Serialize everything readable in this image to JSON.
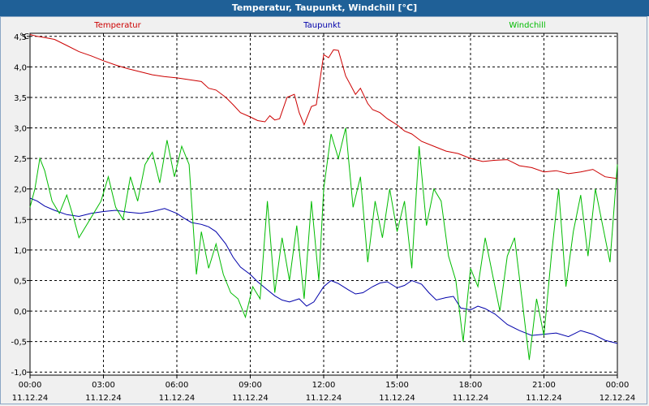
{
  "window": {
    "title": "Temperatur, Taupunkt, Windchill [°C]"
  },
  "chart_data": {
    "type": "line",
    "title": "Temperatur, Taupunkt, Windchill [°C]",
    "ylabel": "°C",
    "xlabel": "",
    "ylim": [
      -1.05,
      4.55
    ],
    "xlim": [
      0,
      24
    ],
    "grid": true,
    "legend_position": "top",
    "y_ticks": [
      4.5,
      4.0,
      3.5,
      3.0,
      2.5,
      2.0,
      1.5,
      1.0,
      0.5,
      0.0,
      -0.5,
      -1.0
    ],
    "y_tick_labels": [
      "4,5",
      "4,0",
      "3,5",
      "3,0",
      "2,5",
      "2,0",
      "1,5",
      "1,0",
      "0,5",
      "0,0",
      "-0,5",
      "-1,0"
    ],
    "x_ticks": [
      0,
      3,
      6,
      9,
      12,
      15,
      18,
      21,
      24
    ],
    "x_tick_times": [
      "00:00",
      "03:00",
      "06:00",
      "09:00",
      "12:00",
      "15:00",
      "18:00",
      "21:00",
      "00:00"
    ],
    "x_tick_dates": [
      "11.12.24",
      "11.12.24",
      "11.12.24",
      "11.12.24",
      "11.12.24",
      "11.12.24",
      "11.12.24",
      "11.12.24",
      "12.12.24"
    ],
    "series": [
      {
        "name": "Temperatur",
        "color": "#cc0000",
        "x": [
          0,
          0.3,
          0.6,
          1.0,
          1.5,
          2.0,
          2.5,
          3.0,
          3.5,
          4.0,
          4.5,
          5.0,
          5.5,
          6.0,
          6.5,
          7.0,
          7.3,
          7.6,
          8.0,
          8.3,
          8.6,
          9.0,
          9.3,
          9.6,
          9.8,
          10.0,
          10.2,
          10.5,
          10.8,
          11.0,
          11.2,
          11.5,
          11.7,
          12.0,
          12.2,
          12.4,
          12.6,
          12.9,
          13.1,
          13.3,
          13.5,
          13.8,
          14.0,
          14.3,
          14.6,
          15.0,
          15.3,
          15.6,
          16.0,
          16.5,
          17.0,
          17.5,
          18.0,
          18.5,
          19.0,
          19.5,
          20.0,
          20.5,
          21.0,
          21.5,
          22.0,
          22.5,
          23.0,
          23.5,
          24.0
        ],
        "y": [
          4.53,
          4.5,
          4.48,
          4.45,
          4.35,
          4.25,
          4.18,
          4.1,
          4.03,
          3.97,
          3.92,
          3.87,
          3.84,
          3.82,
          3.79,
          3.76,
          3.65,
          3.62,
          3.5,
          3.38,
          3.25,
          3.18,
          3.12,
          3.1,
          3.2,
          3.13,
          3.15,
          3.5,
          3.55,
          3.25,
          3.05,
          3.35,
          3.38,
          4.2,
          4.15,
          4.28,
          4.27,
          3.85,
          3.7,
          3.55,
          3.65,
          3.4,
          3.3,
          3.25,
          3.15,
          3.05,
          2.95,
          2.9,
          2.78,
          2.7,
          2.62,
          2.58,
          2.5,
          2.45,
          2.47,
          2.48,
          2.38,
          2.35,
          2.28,
          2.3,
          2.25,
          2.28,
          2.32,
          2.2,
          2.17
        ]
      },
      {
        "name": "Taupunkt",
        "color": "#0000aa",
        "x": [
          0,
          0.3,
          0.6,
          1.0,
          1.5,
          2.0,
          2.5,
          3.0,
          3.5,
          4.0,
          4.5,
          5.0,
          5.5,
          6.0,
          6.3,
          6.6,
          7.0,
          7.3,
          7.6,
          8.0,
          8.3,
          8.6,
          9.0,
          9.3,
          9.6,
          10.0,
          10.3,
          10.6,
          11.0,
          11.3,
          11.6,
          12.0,
          12.3,
          12.6,
          13.0,
          13.3,
          13.6,
          14.0,
          14.3,
          14.6,
          15.0,
          15.3,
          15.6,
          16.0,
          16.3,
          16.6,
          17.0,
          17.3,
          17.6,
          18.0,
          18.3,
          18.6,
          19.0,
          19.5,
          20.0,
          20.5,
          21.0,
          21.5,
          22.0,
          22.5,
          23.0,
          23.5,
          24.0
        ],
        "y": [
          1.85,
          1.8,
          1.72,
          1.65,
          1.58,
          1.55,
          1.6,
          1.63,
          1.65,
          1.62,
          1.6,
          1.63,
          1.68,
          1.6,
          1.52,
          1.45,
          1.42,
          1.38,
          1.3,
          1.1,
          0.88,
          0.72,
          0.6,
          0.48,
          0.38,
          0.25,
          0.18,
          0.15,
          0.2,
          0.08,
          0.15,
          0.4,
          0.5,
          0.45,
          0.35,
          0.28,
          0.3,
          0.4,
          0.46,
          0.48,
          0.38,
          0.42,
          0.5,
          0.44,
          0.3,
          0.18,
          0.22,
          0.24,
          0.05,
          0.02,
          0.08,
          0.04,
          -0.05,
          -0.22,
          -0.32,
          -0.4,
          -0.38,
          -0.36,
          -0.42,
          -0.32,
          -0.38,
          -0.48,
          -0.53
        ]
      },
      {
        "name": "Windchill",
        "color": "#00bb00",
        "x": [
          0,
          0.2,
          0.4,
          0.6,
          0.9,
          1.2,
          1.5,
          1.8,
          2.0,
          2.3,
          2.6,
          2.9,
          3.2,
          3.5,
          3.8,
          4.1,
          4.4,
          4.7,
          5.0,
          5.3,
          5.6,
          5.9,
          6.2,
          6.5,
          6.8,
          7.0,
          7.3,
          7.6,
          7.9,
          8.2,
          8.5,
          8.8,
          9.1,
          9.4,
          9.7,
          10.0,
          10.3,
          10.6,
          10.9,
          11.2,
          11.5,
          11.8,
          12.0,
          12.3,
          12.6,
          12.9,
          13.2,
          13.5,
          13.8,
          14.1,
          14.4,
          14.7,
          15.0,
          15.3,
          15.6,
          15.9,
          16.2,
          16.5,
          16.8,
          17.1,
          17.4,
          17.7,
          18.0,
          18.3,
          18.6,
          18.9,
          19.2,
          19.5,
          19.8,
          20.1,
          20.4,
          20.7,
          21.0,
          21.3,
          21.6,
          21.9,
          22.2,
          22.5,
          22.8,
          23.1,
          23.4,
          23.7,
          24.0
        ],
        "y": [
          1.7,
          2.0,
          2.5,
          2.3,
          1.8,
          1.6,
          1.9,
          1.5,
          1.2,
          1.4,
          1.6,
          1.8,
          2.2,
          1.7,
          1.5,
          2.2,
          1.8,
          2.4,
          2.6,
          2.1,
          2.8,
          2.2,
          2.7,
          2.4,
          0.6,
          1.3,
          0.7,
          1.1,
          0.6,
          0.3,
          0.2,
          -0.1,
          0.4,
          0.2,
          1.8,
          0.3,
          1.2,
          0.5,
          1.4,
          0.2,
          1.8,
          0.5,
          2.0,
          2.9,
          2.5,
          3.0,
          1.7,
          2.2,
          0.8,
          1.8,
          1.2,
          2.0,
          1.3,
          1.8,
          0.7,
          2.7,
          1.4,
          2.0,
          1.8,
          0.9,
          0.5,
          -0.5,
          0.7,
          0.4,
          1.2,
          0.6,
          0.0,
          0.9,
          1.2,
          0.2,
          -0.8,
          0.2,
          -0.4,
          0.9,
          2.0,
          0.4,
          1.3,
          1.9,
          0.9,
          2.0,
          1.4,
          0.8,
          2.4
        ]
      }
    ]
  }
}
